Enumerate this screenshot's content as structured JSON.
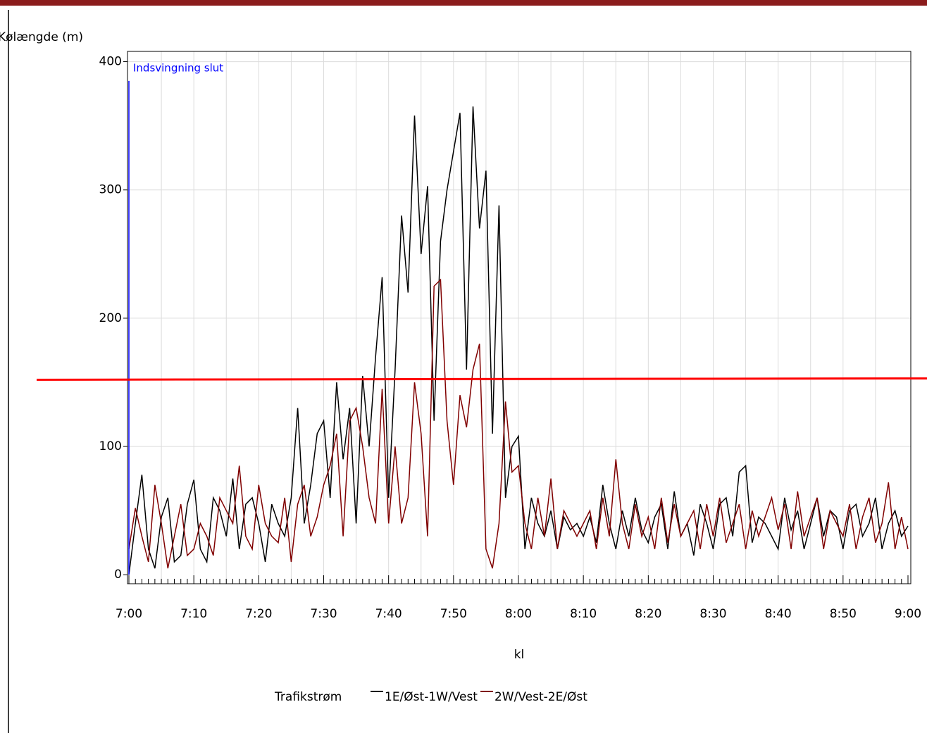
{
  "chart_data": {
    "type": "line",
    "y_label": "Kølængde (m)",
    "x_label": "kl",
    "legend_title": "Trafikstrøm",
    "categories": [
      "7:00",
      null,
      null,
      null,
      null,
      null,
      null,
      null,
      null,
      null,
      "7:10",
      null,
      null,
      null,
      null,
      null,
      null,
      null,
      null,
      null,
      "7:20",
      null,
      null,
      null,
      null,
      null,
      null,
      null,
      null,
      null,
      "7:30",
      null,
      null,
      null,
      null,
      null,
      null,
      null,
      null,
      null,
      "7:40",
      null,
      null,
      null,
      null,
      null,
      null,
      null,
      null,
      null,
      "7:50",
      null,
      null,
      null,
      null,
      null,
      null,
      null,
      null,
      null,
      "8:00",
      null,
      null,
      null,
      null,
      null,
      null,
      null,
      null,
      null,
      "8:10",
      null,
      null,
      null,
      null,
      null,
      null,
      null,
      null,
      null,
      "8:20",
      null,
      null,
      null,
      null,
      null,
      null,
      null,
      null,
      null,
      "8:30",
      null,
      null,
      null,
      null,
      null,
      null,
      null,
      null,
      null,
      "8:40",
      null,
      null,
      null,
      null,
      null,
      null,
      null,
      null,
      null,
      "8:50",
      null,
      null,
      null,
      null,
      null,
      null,
      null,
      null,
      null,
      "9:00"
    ],
    "series": [
      {
        "name": "1E/Øst-1W/Vest",
        "color": "#000000",
        "values": [
          0,
          40,
          78,
          20,
          5,
          45,
          60,
          10,
          15,
          55,
          74,
          20,
          10,
          60,
          50,
          30,
          75,
          20,
          55,
          60,
          40,
          10,
          55,
          40,
          30,
          60,
          130,
          40,
          70,
          110,
          120,
          60,
          150,
          90,
          130,
          40,
          155,
          100,
          170,
          232,
          60,
          160,
          280,
          220,
          358,
          250,
          303,
          120,
          260,
          300,
          330,
          360,
          160,
          365,
          270,
          315,
          110,
          288,
          60,
          100,
          108,
          20,
          60,
          40,
          30,
          50,
          20,
          45,
          35,
          40,
          30,
          45,
          25,
          70,
          40,
          20,
          50,
          30,
          60,
          35,
          25,
          45,
          55,
          20,
          65,
          30,
          40,
          15,
          55,
          40,
          20,
          55,
          60,
          30,
          80,
          85,
          25,
          45,
          40,
          30,
          20,
          60,
          35,
          50,
          20,
          40,
          60,
          30,
          50,
          45,
          20,
          50,
          55,
          30,
          40,
          60,
          20,
          40,
          50,
          30,
          38
        ]
      },
      {
        "name": "2W/Vest-2E/Øst",
        "color": "#800000",
        "values": [
          20,
          52,
          30,
          10,
          70,
          40,
          5,
          30,
          55,
          15,
          20,
          40,
          30,
          15,
          60,
          50,
          40,
          85,
          30,
          20,
          70,
          40,
          30,
          25,
          60,
          10,
          55,
          70,
          30,
          45,
          70,
          85,
          110,
          30,
          120,
          130,
          100,
          60,
          40,
          145,
          40,
          100,
          40,
          60,
          150,
          110,
          30,
          225,
          230,
          120,
          70,
          140,
          115,
          160,
          180,
          20,
          5,
          40,
          135,
          80,
          85,
          40,
          20,
          60,
          30,
          75,
          20,
          50,
          40,
          30,
          40,
          50,
          20,
          60,
          30,
          90,
          40,
          20,
          55,
          30,
          45,
          20,
          60,
          25,
          55,
          30,
          40,
          50,
          20,
          55,
          30,
          60,
          25,
          40,
          55,
          20,
          50,
          30,
          45,
          60,
          35,
          55,
          20,
          65,
          30,
          45,
          60,
          20,
          50,
          40,
          30,
          55,
          20,
          45,
          60,
          25,
          40,
          72,
          20,
          45,
          20
        ]
      }
    ],
    "ylim": [
      -7,
      408
    ],
    "yticks": [
      0,
      100,
      200,
      300,
      400
    ],
    "grid": true,
    "hline": {
      "value": 152,
      "color": "#ff0000"
    },
    "vline": {
      "x": "7:00",
      "top": 385,
      "color": "#0000ff",
      "label": "Indsvingning slut"
    }
  }
}
